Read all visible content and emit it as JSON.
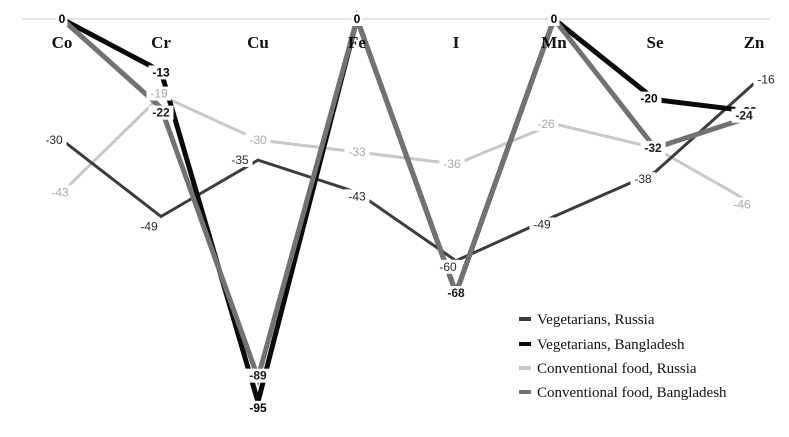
{
  "chart_data": {
    "type": "line",
    "title": "",
    "xlabel": "",
    "ylabel": "",
    "categories": [
      "Co",
      "Cr",
      "Cu",
      "Fe",
      "I",
      "Mn",
      "Se",
      "Zn"
    ],
    "ylim": [
      -100,
      0
    ],
    "grid": false,
    "legend_position": "bottom-right",
    "series": [
      {
        "name": "Vegetarians, Russia",
        "color": "#3c3c3c",
        "values": [
          -30,
          -49,
          -35,
          -43,
          -60,
          -49,
          -38,
          -16
        ]
      },
      {
        "name": "Vegetarians, Bangladesh",
        "color": "#0a0a0a",
        "values": [
          0,
          -13,
          -95,
          0,
          -68,
          0,
          -20,
          -23
        ]
      },
      {
        "name": "Conventional food, Russia",
        "color": "#c8c8c8",
        "values": [
          -43,
          -19,
          -30,
          -33,
          -36,
          -26,
          -32,
          -46
        ]
      },
      {
        "name": "Conventional food, Bangladesh",
        "color": "#727272",
        "values": [
          0,
          -22,
          -89,
          0,
          -68,
          0,
          -32,
          -24
        ]
      }
    ],
    "data_labels": [
      {
        "text": "-30",
        "series": 0,
        "index": 0
      },
      {
        "text": "-49",
        "series": 0,
        "index": 1
      },
      {
        "text": "-35",
        "series": 0,
        "index": 2
      },
      {
        "text": "-43",
        "series": 0,
        "index": 3
      },
      {
        "text": "-60",
        "series": 0,
        "index": 4
      },
      {
        "text": "-49",
        "series": 0,
        "index": 5
      },
      {
        "text": "-38",
        "series": 0,
        "index": 6
      },
      {
        "text": "-16",
        "series": 0,
        "index": 7
      },
      {
        "text": "0",
        "series": 1,
        "index": 0
      },
      {
        "text": "-13",
        "series": 1,
        "index": 1
      },
      {
        "text": "-95",
        "series": 1,
        "index": 2
      },
      {
        "text": "0",
        "series": 1,
        "index": 3
      },
      {
        "text": "0",
        "series": 1,
        "index": 5
      },
      {
        "text": "-20",
        "series": 1,
        "index": 6
      },
      {
        "text": "-23",
        "series": 1,
        "index": 7
      },
      {
        "text": "-43",
        "series": 2,
        "index": 0
      },
      {
        "text": "-19",
        "series": 2,
        "index": 1
      },
      {
        "text": "-30",
        "series": 2,
        "index": 2
      },
      {
        "text": "-33",
        "series": 2,
        "index": 3
      },
      {
        "text": "-36",
        "series": 2,
        "index": 4
      },
      {
        "text": "-26",
        "series": 2,
        "index": 5
      },
      {
        "text": "-46",
        "series": 2,
        "index": 7
      },
      {
        "text": "-22",
        "series": 3,
        "index": 1
      },
      {
        "text": "-89",
        "series": 3,
        "index": 2
      },
      {
        "text": "-68",
        "series": 3,
        "index": 4
      },
      {
        "text": "-32",
        "series": 3,
        "index": 6
      },
      {
        "text": "-24",
        "series": 3,
        "index": 7
      }
    ]
  }
}
